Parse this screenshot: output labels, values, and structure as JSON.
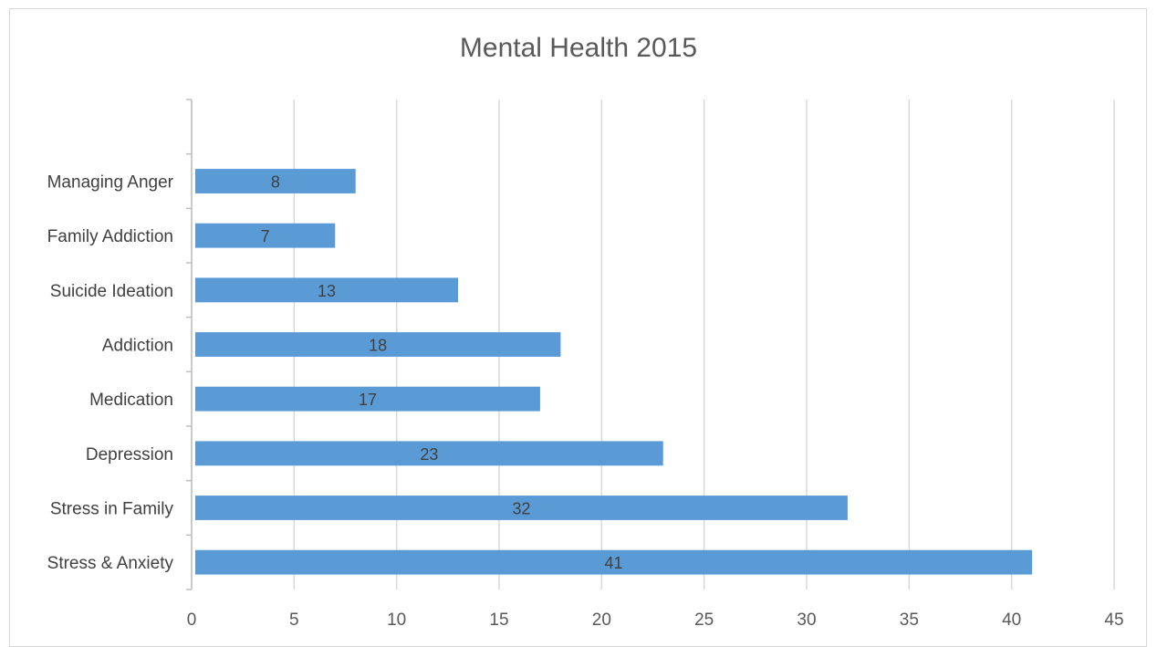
{
  "chart_data": {
    "type": "bar",
    "orientation": "horizontal",
    "title": "Mental Health 2015",
    "categories": [
      "Stress & Anxiety",
      "Stress in Family",
      "Depression",
      "Medication",
      "Addiction",
      "Suicide Ideation",
      "Family Addiction",
      "Managing Anger"
    ],
    "values": [
      41,
      32,
      23,
      17,
      18,
      13,
      7,
      8
    ],
    "xlim": [
      0,
      45
    ],
    "xticks": [
      0,
      5,
      10,
      15,
      20,
      25,
      30,
      35,
      40,
      45
    ],
    "grid": true,
    "data_labels": true,
    "legend": "none",
    "bar_color": "#5b9bd5"
  }
}
